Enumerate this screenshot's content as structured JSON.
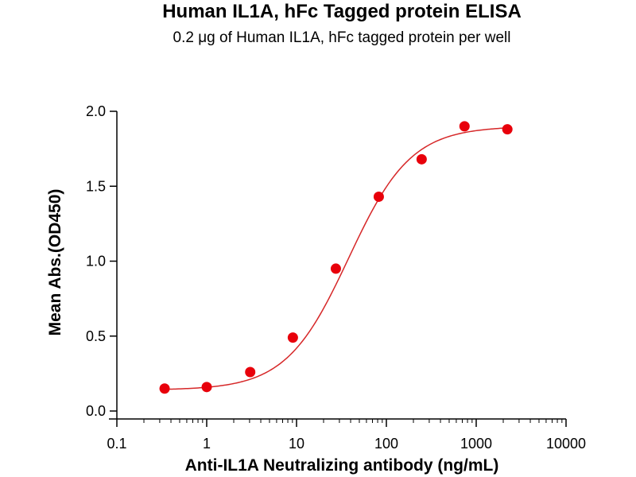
{
  "chart_data": {
    "type": "scatter",
    "title": "Human IL1A, hFc Tagged protein ELISA",
    "subtitle": "0.2 μg of Human IL1A, hFc tagged protein per well",
    "xlabel": "Anti-IL1A Neutralizing antibody (ng/mL)",
    "ylabel": "Mean Abs.(OD450)",
    "x_scale": "log",
    "xlim": [
      0.1,
      10000
    ],
    "ylim": [
      0,
      2.0
    ],
    "x_ticks": [
      0.1,
      1,
      10,
      100,
      1000,
      10000
    ],
    "x_tick_labels": [
      "0.1",
      "1",
      "10",
      "100",
      "1000",
      "10000"
    ],
    "y_ticks": [
      0,
      0.5,
      1.0,
      1.5,
      2.0
    ],
    "y_tick_labels": [
      "0.0",
      "0.5",
      "1.0",
      "1.5",
      "2.0"
    ],
    "grid": false,
    "legend": "none",
    "series": [
      {
        "x": [
          0.34,
          1.0,
          3.05,
          9.1,
          27.4,
          82.3,
          247,
          741,
          2222
        ],
        "y": [
          0.15,
          0.16,
          0.26,
          0.49,
          0.95,
          1.43,
          1.68,
          1.9,
          1.88
        ],
        "marker": "circle",
        "fit": "4PL",
        "color": "#e8000b"
      }
    ]
  }
}
